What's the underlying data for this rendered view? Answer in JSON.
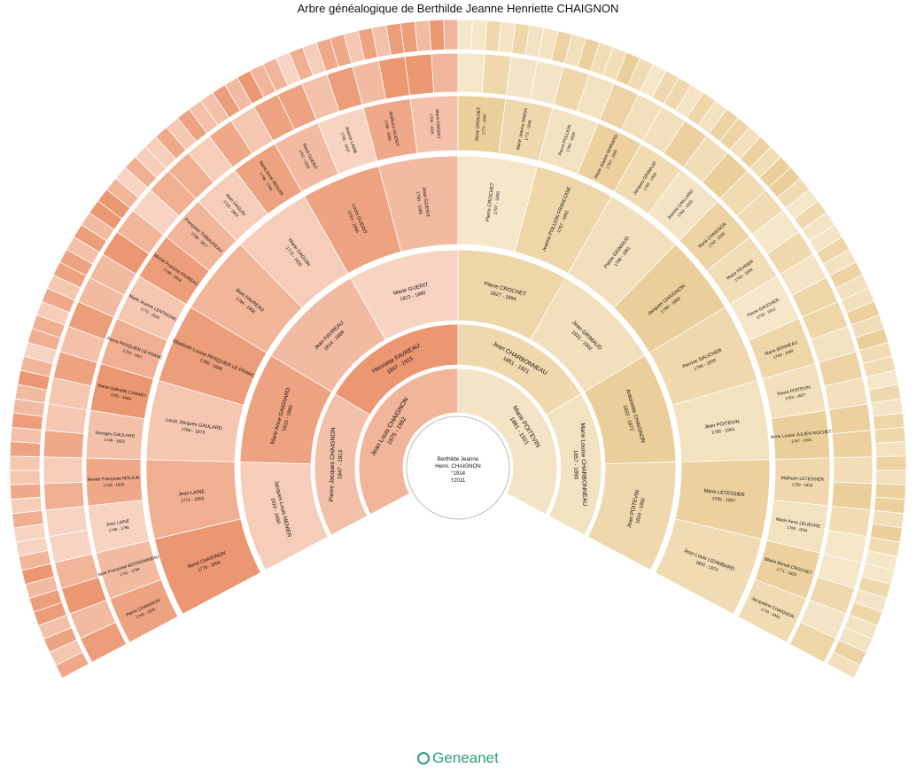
{
  "title": "Arbre généalogique de Berthilde Jeanne Henriette CHAIGNON",
  "brand": "Geneanet",
  "colors": {
    "paternal": "#e8895f",
    "paternal_pale": "#fbe5da",
    "maternal": "#e8c98f",
    "maternal_pale": "#f9eed8",
    "ring_border": "#ffffff",
    "brand": "#2f9e7a"
  },
  "root": {
    "line1": "Berthilde Jeanne",
    "line2": "Henri. CHAIGNON",
    "line3": "°1914",
    "line4": "†2011"
  },
  "gen1": [
    {
      "name": "Jean Louis CHAIGNON",
      "dates": "1875 - 1962"
    },
    {
      "name": "Marie POITEVIN",
      "dates": "1881 - 1921"
    }
  ],
  "gen2": [
    {
      "name": "Pierre Jacques CHAIGNON",
      "dates": "1847 - 1913"
    },
    {
      "name": "Henriette FAVREAU",
      "dates": "1847 - 1915"
    },
    {
      "name": "Jean CHARBONNEAU",
      "dates": "1851 - 1921"
    },
    {
      "name": "Marie Louise CHARBONNEAU",
      "dates": "1857 - 1890"
    }
  ],
  "gen3": [
    {
      "name": "Jacques Louis MENIER",
      "dates": "1810 - 1880"
    },
    {
      "name": "Marie Anne GAIGNARD",
      "dates": "1815 - 1880"
    },
    {
      "name": "Jean FAVREAU",
      "dates": "1814 - 1886"
    },
    {
      "name": "Marie GUERIT",
      "dates": "1823 - 1890"
    },
    {
      "name": "Pierre CROCHET",
      "dates": "1827 - 1894"
    },
    {
      "name": "Jean GRIMAUD",
      "dates": "1831 - 1902"
    },
    {
      "name": "Antoinette CHAIGNON",
      "dates": "1832 - 1872"
    },
    {
      "name": "Jean POITEVIN",
      "dates": "1824 - 1892"
    }
  ],
  "gen4": [
    {
      "name": "René CHAIGNON",
      "dates": "1778 - 1858"
    },
    {
      "name": "Jean LAINE",
      "dates": "1772 - 1852"
    },
    {
      "name": "Louis Jacques GAULARD",
      "dates": "1784 - 1873"
    },
    {
      "name": "Elisabeth Louise PASQUIER LE FRANC",
      "dates": "1786 - 1849"
    },
    {
      "name": "Jean FAVREAU",
      "dates": "1784 - 1856"
    },
    {
      "name": "Marie DAGUIN",
      "dates": "1773 - 1839"
    },
    {
      "name": "Louis GUERIT",
      "dates": "1793 - 1840"
    },
    {
      "name": "Jean GUERIT",
      "dates": "1780 - 1865"
    },
    {
      "name": "Pierre CROCHET",
      "dates": "1797 - 1850"
    },
    {
      "name": "Jeanne POLLION FRANCOISE",
      "dates": "1797 - 1862"
    },
    {
      "name": "Pierre GRIMAUD",
      "dates": "1796 - 1861"
    },
    {
      "name": "Jacques CHAIGNON",
      "dates": "1790 - 1868"
    },
    {
      "name": "Perrine GAUCHER",
      "dates": "1796 - 1833"
    },
    {
      "name": "Jean POITEVIN",
      "dates": "1795 - 1861"
    },
    {
      "name": "Marie LETESSIER",
      "dates": "1795 - 1857"
    },
    {
      "name": "Jean Louis LIZAMBARD",
      "dates": "1800 - 1870"
    }
  ],
  "gen5": [
    {
      "name": "Pierre CHAIGNON",
      "dates": "1745 - 1805"
    },
    {
      "name": "Marie Françoise BOISSONNEAU",
      "dates": "1741 - 1788"
    },
    {
      "name": "Jean LAINE",
      "dates": "1740 - 1796"
    },
    {
      "name": "Renée Françoise MOULIN",
      "dates": "1743 - 1803"
    },
    {
      "name": "Georges GAULARD",
      "dates": "1749 - 1822"
    },
    {
      "name": "Marie Gabrielle CARABY",
      "dates": "1761 - 1809"
    },
    {
      "name": "Pierre PASQUIER LE FRANC",
      "dates": "1753 - 1827"
    },
    {
      "name": "Marie Jeanne LENTAIGNE",
      "dates": "1770 - 1826"
    },
    {
      "name": "Michel François FAVREAU",
      "dates": "1748 - 1818"
    },
    {
      "name": "Françoise THIBAUDEAU",
      "dates": "1758 - 1817"
    },
    {
      "name": "Jean DAGUIN",
      "dates": "1733 - 1803"
    },
    {
      "name": "Marie Anne SEGUIN",
      "dates": "1746 - 1786"
    },
    {
      "name": "René GUERIT",
      "dates": "1762 - 1828"
    },
    {
      "name": "Jeanne LAINE",
      "dates": "1766 - 1810"
    },
    {
      "name": "Mathurin GUERIT",
      "dates": "1748 - 1809"
    },
    {
      "name": "Marie DANIAU",
      "dates": "1756 - 1815"
    },
    {
      "name": "René CROCHET",
      "dates": "1771 - 1842"
    },
    {
      "name": "Marie Jeanne SIMON",
      "dates": "1772 - 1848"
    },
    {
      "name": "Pierre POLLION",
      "dates": "1760 - 1829"
    },
    {
      "name": "Marie Jeanne MAINARD",
      "dates": "1769 - 1846"
    },
    {
      "name": "Jacques GRIMAUD",
      "dates": "1760 - 1826"
    },
    {
      "name": "Jeanne GAILLARD",
      "dates": "1764 - 1833"
    },
    {
      "name": "René CHAIGNON",
      "dates": "1762 - 1830"
    },
    {
      "name": "Marie FEVRIER",
      "dates": "1766 - 1828"
    },
    {
      "name": "Pierre GAUCHER",
      "dates": "1758 - 1812"
    },
    {
      "name": "Marie BONNEAU",
      "dates": "1769 - 1840"
    },
    {
      "name": "Pierre POITEVIN",
      "dates": "1763 - 1827"
    },
    {
      "name": "Anne Louise JULIEN ROCHET",
      "dates": "1767 - 1831"
    },
    {
      "name": "Mathurin LETESSIER",
      "dates": "1759 - 1830"
    },
    {
      "name": "Marie Anne LELIEVRE",
      "dates": "1766 - 1834"
    },
    {
      "name": "Blaise Benoît CROCHET",
      "dates": "1771 - 1825"
    },
    {
      "name": "Jacqueline CHAIGNON",
      "dates": "1778 - 1844"
    }
  ]
}
